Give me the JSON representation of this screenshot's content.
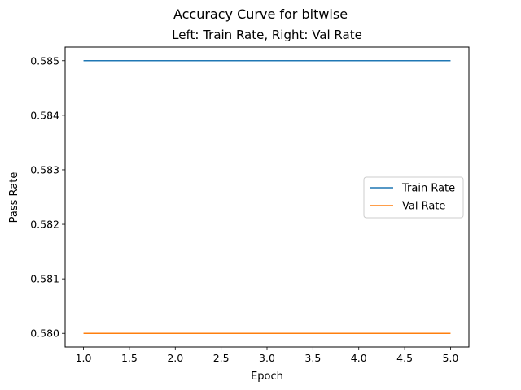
{
  "chart_data": {
    "type": "line",
    "suptitle": "Accuracy Curve for bitwise",
    "title": "Left: Train Rate, Right: Val Rate",
    "xlabel": "Epoch",
    "ylabel": "Pass Rate",
    "x": [
      1,
      2,
      3,
      4,
      5
    ],
    "xlim": [
      0.8,
      5.2
    ],
    "ylim": [
      0.57975,
      0.58525
    ],
    "xticks": [
      1.0,
      1.5,
      2.0,
      2.5,
      3.0,
      3.5,
      4.0,
      4.5,
      5.0
    ],
    "xtick_labels": [
      "1.0",
      "1.5",
      "2.0",
      "2.5",
      "3.0",
      "3.5",
      "4.0",
      "4.5",
      "5.0"
    ],
    "yticks": [
      0.58,
      0.581,
      0.582,
      0.583,
      0.584,
      0.585
    ],
    "ytick_labels": [
      "0.580",
      "0.581",
      "0.582",
      "0.583",
      "0.584",
      "0.585"
    ],
    "series": [
      {
        "name": "Train Rate",
        "color": "#1f77b4",
        "values": [
          0.585,
          0.585,
          0.585,
          0.585,
          0.585
        ]
      },
      {
        "name": "Val Rate",
        "color": "#ff7f0e",
        "values": [
          0.58,
          0.58,
          0.58,
          0.58,
          0.58
        ]
      }
    ],
    "legend_position": "center-right",
    "grid": false
  }
}
